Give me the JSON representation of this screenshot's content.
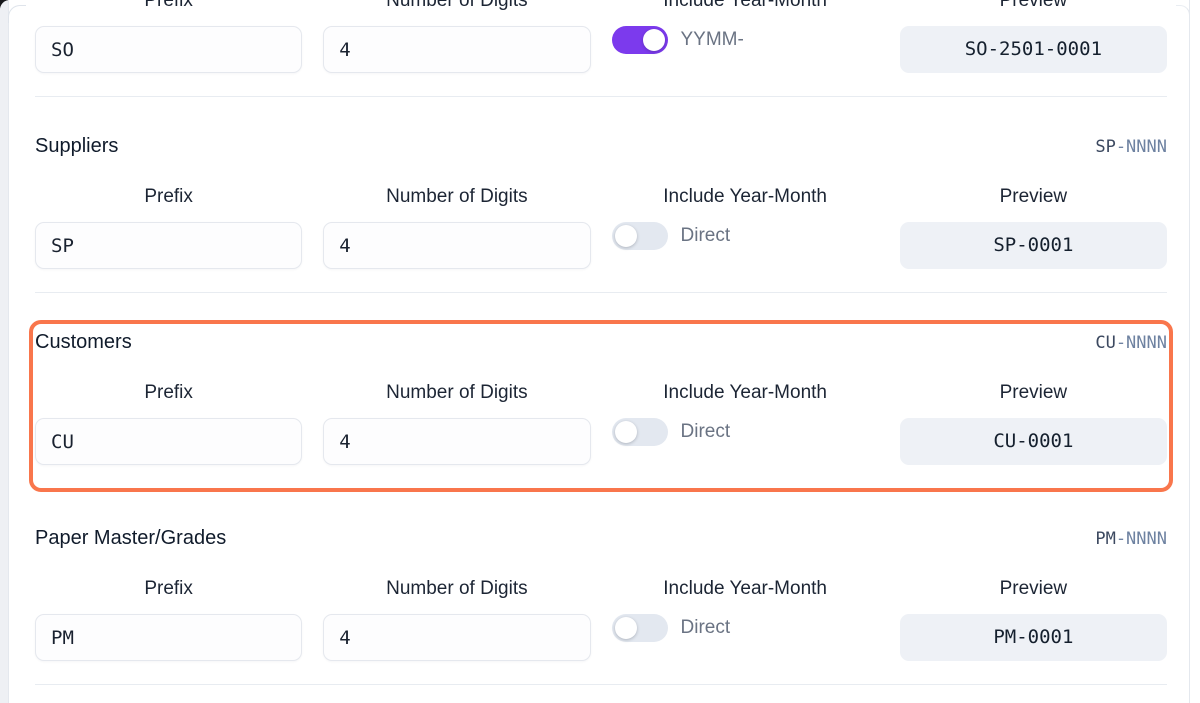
{
  "column_headers": {
    "prefix": "Prefix",
    "digits": "Number of Digits",
    "year_month": "Include Year-Month",
    "preview": "Preview"
  },
  "sections": [
    {
      "title": "",
      "badge_code": "",
      "badge_pattern": "",
      "prefix": "SO",
      "digits": "4",
      "toggle_on": true,
      "toggle_label": "YYMM-",
      "preview": "SO-2501-0001",
      "highlighted": false
    },
    {
      "title": "Suppliers",
      "badge_code": "SP",
      "badge_pattern": "-NNNN",
      "prefix": "SP",
      "digits": "4",
      "toggle_on": false,
      "toggle_label": "Direct",
      "preview": "SP-0001",
      "highlighted": false
    },
    {
      "title": "Customers",
      "badge_code": "CU",
      "badge_pattern": "-NNNN",
      "prefix": "CU",
      "digits": "4",
      "toggle_on": false,
      "toggle_label": "Direct",
      "preview": "CU-0001",
      "highlighted": true
    },
    {
      "title": "Paper Master/Grades",
      "badge_code": "PM",
      "badge_pattern": "-NNNN",
      "prefix": "PM",
      "digits": "4",
      "toggle_on": false,
      "toggle_label": "Direct",
      "preview": "PM-0001",
      "highlighted": false
    }
  ],
  "colors": {
    "toggle_on": "#7c3aed",
    "highlight": "#f9764c",
    "preview_bg": "#eef1f6"
  }
}
